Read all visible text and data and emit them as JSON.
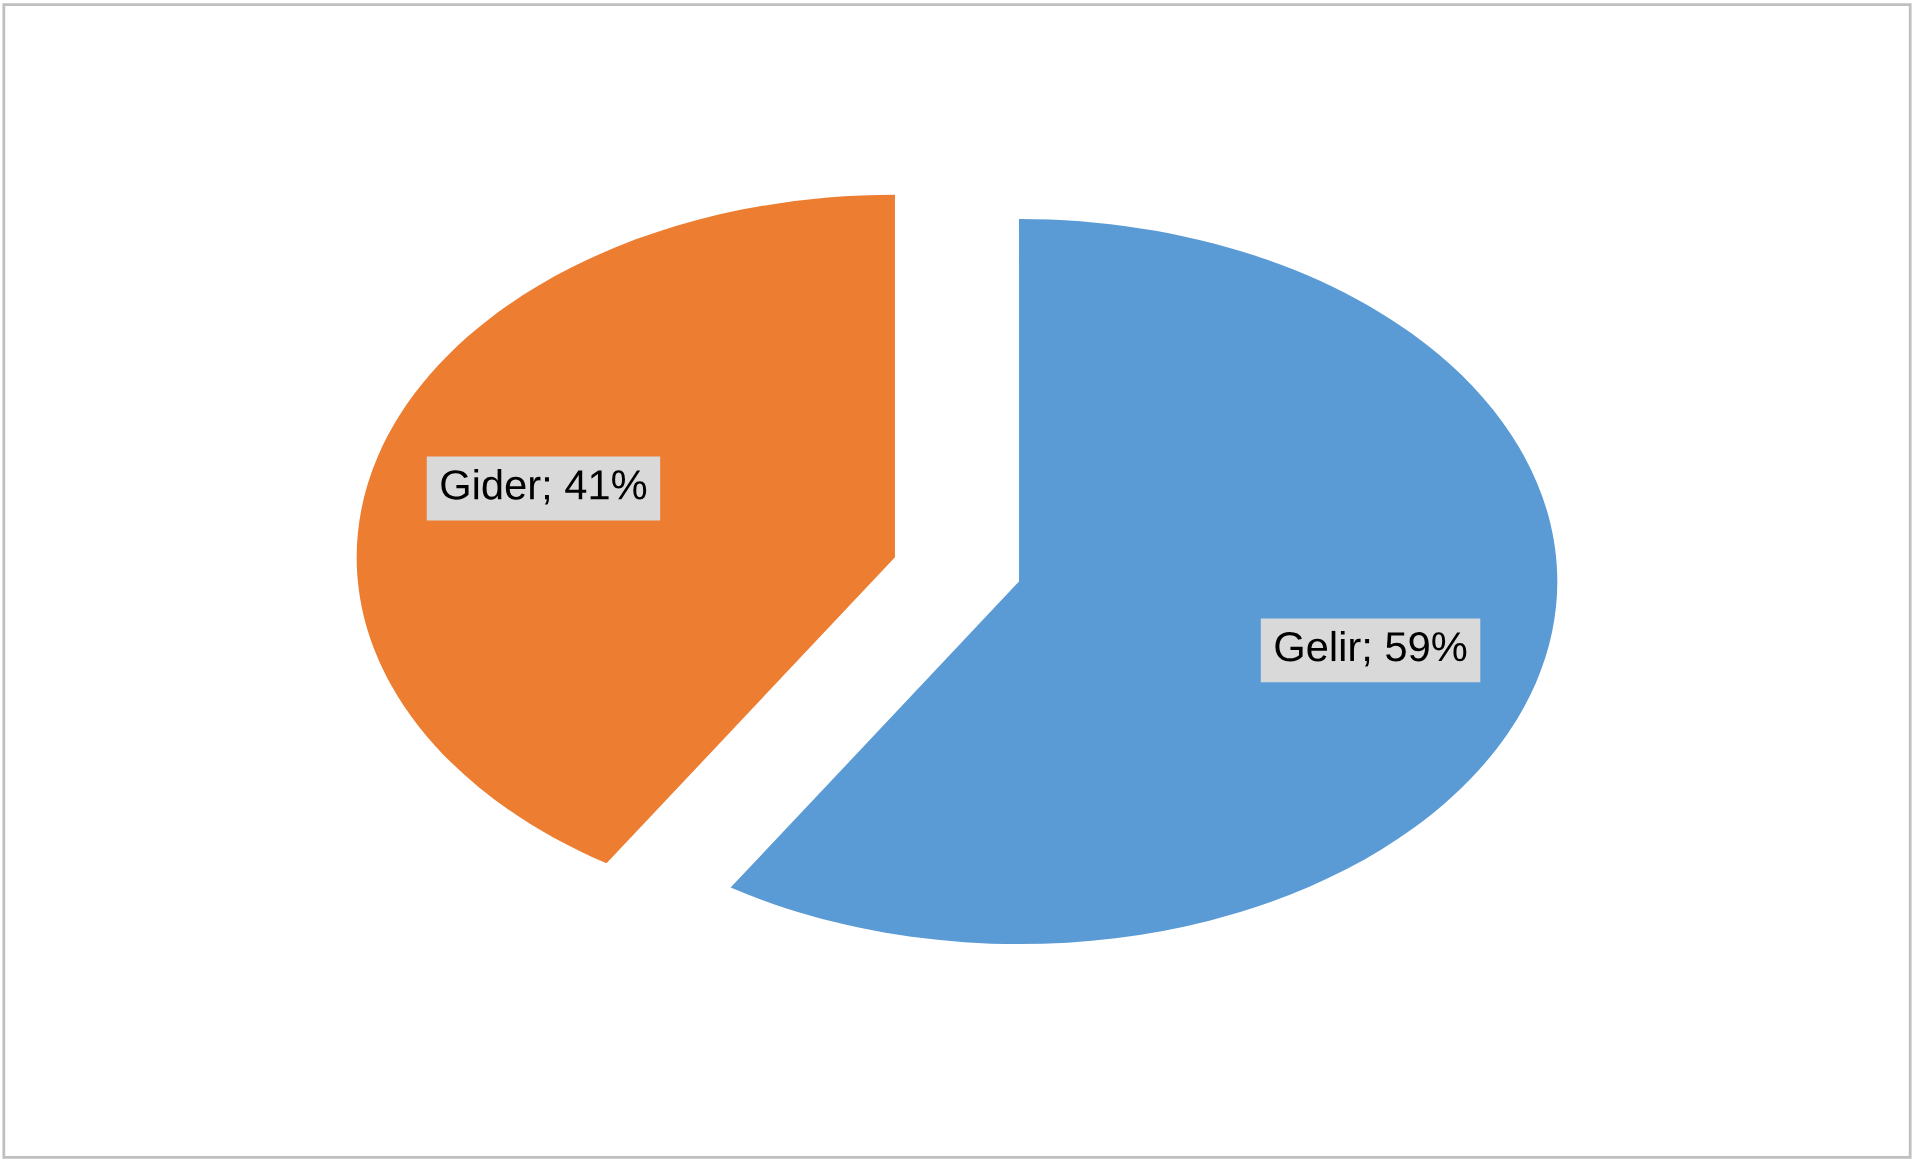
{
  "chart_data": {
    "type": "pie",
    "categories": [
      null,
      null
    ],
    "values": [
      59,
      41
    ],
    "colors": [
      "#5b9bd5",
      "#ed7d31"
    ],
    "value_labels": [
      "Gelir; 59%",
      "Gider; 41%"
    ]
  }
}
